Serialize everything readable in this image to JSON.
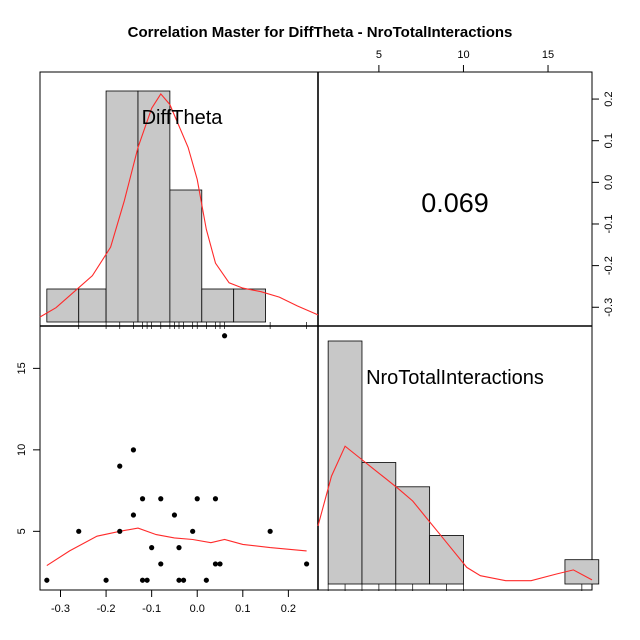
{
  "chart_data": {
    "type": "scatter",
    "title": "Correlation Master for DiffTheta - NroTotalInteractions",
    "variables": [
      "DiffTheta",
      "NroTotalInteractions"
    ],
    "correlation": "0.069",
    "layout": "2x2 scatterplot matrix: histograms with density curves on diagonal, scatter with smoother lower-left, correlation upper-right",
    "x_axis": {
      "variable": "DiffTheta",
      "range": [
        -0.345,
        0.265
      ],
      "ticks": [
        -0.3,
        -0.2,
        -0.1,
        0.0,
        0.1,
        0.2
      ],
      "tick_labels": [
        "-0.3",
        "-0.2",
        "-0.1",
        "0.0",
        "0.1",
        "0.2"
      ]
    },
    "y_axis_left": {
      "variable": "NroTotalInteractions",
      "range": [
        1.4,
        17.6
      ],
      "ticks": [
        5,
        10,
        15
      ],
      "tick_labels": [
        "5",
        "10",
        "15"
      ]
    },
    "x_axis_top": {
      "variable": "NroTotalInteractions",
      "range": [
        1.4,
        17.6
      ],
      "ticks": [
        5,
        10,
        15
      ],
      "tick_labels": [
        "5",
        "10",
        "15"
      ]
    },
    "y_axis_right": {
      "variable": "DiffTheta",
      "range": [
        -0.345,
        0.265
      ],
      "ticks": [
        -0.3,
        -0.2,
        -0.1,
        0.0,
        0.1,
        0.2
      ],
      "tick_labels": [
        "-0.3",
        "-0.2",
        "-0.1",
        "0.0",
        "0.1",
        "0.2"
      ]
    },
    "diffTheta_histogram": {
      "breaks": [
        -0.33,
        -0.26,
        -0.2,
        -0.13,
        -0.06,
        0.01,
        0.08,
        0.15,
        0.22
      ],
      "counts": [
        1,
        1,
        7,
        7,
        4,
        1,
        1,
        0
      ]
    },
    "nro_histogram": {
      "breaks": [
        2,
        4,
        6,
        8,
        10,
        12,
        14,
        16,
        18
      ],
      "counts": [
        10,
        5,
        4,
        2,
        0,
        0,
        0,
        1
      ]
    },
    "scatter_points": [
      {
        "x": -0.33,
        "y": 2
      },
      {
        "x": -0.26,
        "y": 5
      },
      {
        "x": -0.2,
        "y": 2
      },
      {
        "x": -0.17,
        "y": 9
      },
      {
        "x": -0.17,
        "y": 5
      },
      {
        "x": -0.14,
        "y": 10
      },
      {
        "x": -0.14,
        "y": 6
      },
      {
        "x": -0.12,
        "y": 7
      },
      {
        "x": -0.12,
        "y": 2
      },
      {
        "x": -0.11,
        "y": 2
      },
      {
        "x": -0.1,
        "y": 4
      },
      {
        "x": -0.08,
        "y": 7
      },
      {
        "x": -0.08,
        "y": 3
      },
      {
        "x": -0.05,
        "y": 6
      },
      {
        "x": -0.04,
        "y": 4
      },
      {
        "x": -0.04,
        "y": 2
      },
      {
        "x": -0.03,
        "y": 2
      },
      {
        "x": -0.01,
        "y": 5
      },
      {
        "x": 0.0,
        "y": 7
      },
      {
        "x": 0.02,
        "y": 2
      },
      {
        "x": 0.04,
        "y": 3
      },
      {
        "x": 0.04,
        "y": 7
      },
      {
        "x": 0.05,
        "y": 3
      },
      {
        "x": 0.06,
        "y": 17
      },
      {
        "x": 0.16,
        "y": 5
      },
      {
        "x": 0.24,
        "y": 3
      }
    ],
    "smoother": [
      {
        "x": -0.33,
        "y": 2.9
      },
      {
        "x": -0.28,
        "y": 3.8
      },
      {
        "x": -0.22,
        "y": 4.7
      },
      {
        "x": -0.17,
        "y": 5.0
      },
      {
        "x": -0.13,
        "y": 5.2
      },
      {
        "x": -0.09,
        "y": 4.8
      },
      {
        "x": -0.05,
        "y": 4.6
      },
      {
        "x": -0.01,
        "y": 4.5
      },
      {
        "x": 0.03,
        "y": 4.3
      },
      {
        "x": 0.06,
        "y": 4.5
      },
      {
        "x": 0.1,
        "y": 4.2
      },
      {
        "x": 0.16,
        "y": 4.0
      },
      {
        "x": 0.24,
        "y": 3.8
      }
    ],
    "diffTheta_density": [
      {
        "x": -0.345,
        "y": 0.14
      },
      {
        "x": -0.31,
        "y": 0.4
      },
      {
        "x": -0.27,
        "y": 0.85
      },
      {
        "x": -0.23,
        "y": 1.3
      },
      {
        "x": -0.19,
        "y": 2.1
      },
      {
        "x": -0.16,
        "y": 3.4
      },
      {
        "x": -0.13,
        "y": 4.9
      },
      {
        "x": -0.1,
        "y": 6.0
      },
      {
        "x": -0.08,
        "y": 6.4
      },
      {
        "x": -0.06,
        "y": 6.1
      },
      {
        "x": -0.04,
        "y": 5.5
      },
      {
        "x": -0.02,
        "y": 4.9
      },
      {
        "x": 0.0,
        "y": 4.0
      },
      {
        "x": 0.02,
        "y": 2.6
      },
      {
        "x": 0.04,
        "y": 1.65
      },
      {
        "x": 0.07,
        "y": 1.1
      },
      {
        "x": 0.1,
        "y": 0.95
      },
      {
        "x": 0.14,
        "y": 0.85
      },
      {
        "x": 0.18,
        "y": 0.7
      },
      {
        "x": 0.22,
        "y": 0.45
      },
      {
        "x": 0.265,
        "y": 0.2
      }
    ],
    "nro_density": [
      {
        "x": 1.4,
        "y": 0.07
      },
      {
        "x": 2.2,
        "y": 0.13
      },
      {
        "x": 3.0,
        "y": 0.166
      },
      {
        "x": 3.8,
        "y": 0.153
      },
      {
        "x": 4.6,
        "y": 0.14
      },
      {
        "x": 5.4,
        "y": 0.127
      },
      {
        "x": 6.2,
        "y": 0.114
      },
      {
        "x": 7.0,
        "y": 0.1
      },
      {
        "x": 7.8,
        "y": 0.08
      },
      {
        "x": 8.6,
        "y": 0.06
      },
      {
        "x": 9.4,
        "y": 0.04
      },
      {
        "x": 10.2,
        "y": 0.02
      },
      {
        "x": 11.0,
        "y": 0.01
      },
      {
        "x": 12.5,
        "y": 0.004
      },
      {
        "x": 14.0,
        "y": 0.004
      },
      {
        "x": 15.5,
        "y": 0.012
      },
      {
        "x": 16.5,
        "y": 0.017
      },
      {
        "x": 17.6,
        "y": 0.005
      }
    ],
    "diffTheta_rug": [
      -0.26,
      -0.2,
      -0.17,
      -0.14,
      -0.12,
      -0.11,
      -0.1,
      -0.08,
      -0.06,
      -0.05,
      -0.04,
      -0.03,
      -0.01,
      0.0,
      0.02,
      0.04,
      0.05,
      0.06,
      0.16,
      0.24
    ],
    "nro_rug": [
      2,
      3,
      4,
      5,
      6,
      7,
      9,
      10,
      17
    ]
  }
}
